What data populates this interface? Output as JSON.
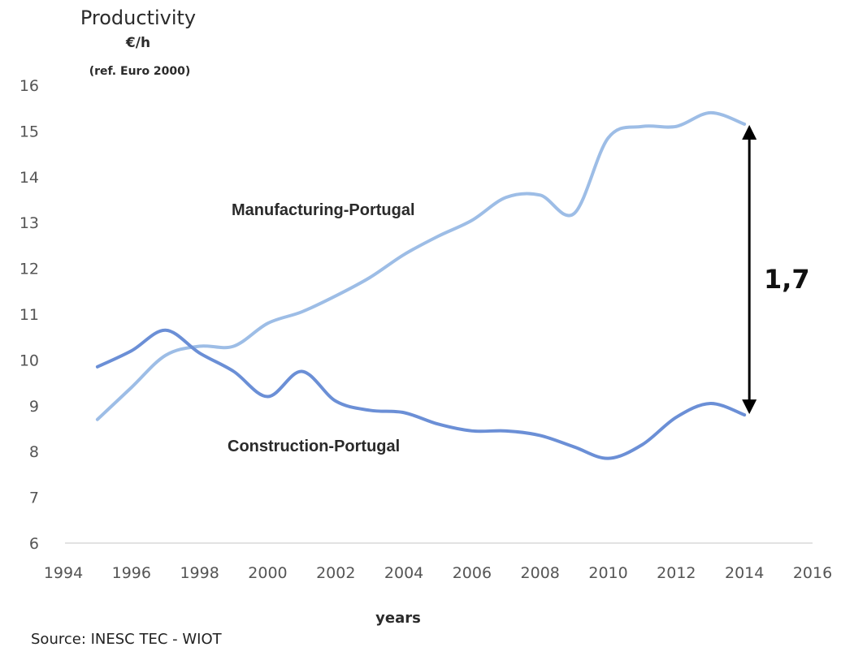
{
  "chart_data": {
    "type": "line",
    "ylabel": "Productivity",
    "ylabel_unit": "€/h",
    "ylabel_ref": "(ref. Euro 2000)",
    "xlabel": "years",
    "source": "Source: INESC TEC - WIOT",
    "xlim": [
      1994,
      2016
    ],
    "ylim": [
      6,
      16
    ],
    "x_ticks": [
      "1994",
      "1996",
      "1998",
      "2000",
      "2002",
      "2004",
      "2006",
      "2008",
      "2010",
      "2012",
      "2014",
      "2016"
    ],
    "y_ticks": [
      "6",
      "7",
      "8",
      "9",
      "10",
      "11",
      "12",
      "13",
      "14",
      "15",
      "16"
    ],
    "grid": false,
    "legend": "none",
    "series": [
      {
        "name": "Manufacturing-Portugal",
        "color": "#9dbde6",
        "x": [
          1995,
          1996,
          1997,
          1998,
          1999,
          2000,
          2001,
          2002,
          2003,
          2004,
          2005,
          2006,
          2007,
          2008,
          2009,
          2010,
          2011,
          2012,
          2013,
          2014
        ],
        "y": [
          8.7,
          9.4,
          10.1,
          10.3,
          10.3,
          10.8,
          11.05,
          11.4,
          11.8,
          12.3,
          12.7,
          13.05,
          13.55,
          13.6,
          13.2,
          14.85,
          15.1,
          15.1,
          15.4,
          15.15
        ]
      },
      {
        "name": "Construction-Portugal",
        "color": "#6b8fd6",
        "x": [
          1995,
          1996,
          1997,
          1998,
          1999,
          2000,
          2001,
          2002,
          2003,
          2004,
          2005,
          2006,
          2007,
          2008,
          2009,
          2010,
          2011,
          2012,
          2013,
          2014
        ],
        "y": [
          9.85,
          10.2,
          10.65,
          10.15,
          9.75,
          9.2,
          9.75,
          9.1,
          8.9,
          8.85,
          8.6,
          8.45,
          8.45,
          8.35,
          8.1,
          7.85,
          8.15,
          8.75,
          9.05,
          8.8
        ]
      }
    ],
    "annotation": {
      "text": "1,7",
      "x": 2014,
      "y_from": 15.15,
      "y_to": 8.8
    }
  }
}
